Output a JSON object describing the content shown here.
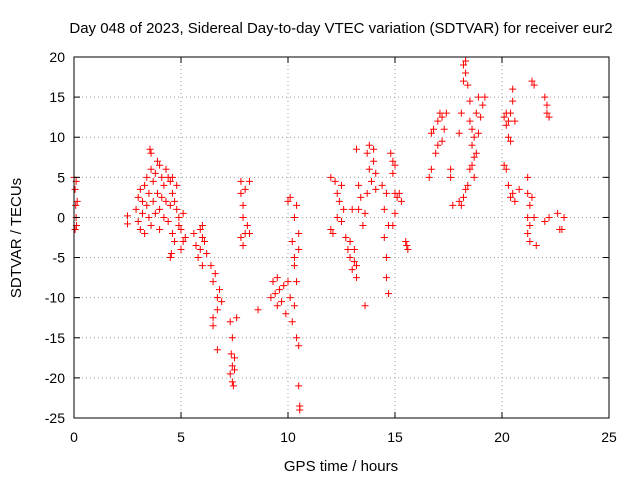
{
  "chart_data": {
    "type": "scatter",
    "title": "Day 048 of 2023, Sidereal Day-to-day VTEC variation (SDTVAR) for receiver eur2",
    "xlabel": "GPS time / hours",
    "ylabel": "SDTVAR / TECUs",
    "xlim": [
      0,
      25
    ],
    "ylim": [
      -25,
      20
    ],
    "xticks": [
      0,
      5,
      10,
      15,
      20,
      25
    ],
    "yticks": [
      -25,
      -20,
      -15,
      -10,
      -5,
      0,
      5,
      10,
      15,
      20
    ],
    "xtick_labels": [
      "0",
      "5",
      "10",
      "15",
      "20",
      "25"
    ],
    "ytick_labels": [
      "-25",
      "-20",
      "-15",
      "-10",
      "-5",
      "0",
      "5",
      "10",
      "15",
      "20"
    ],
    "grid": true,
    "marker": "plus",
    "color": "#ff0000",
    "series": [
      {
        "name": "SDTVAR",
        "points": [
          [
            0.0,
            5.0
          ],
          [
            0.05,
            3.5
          ],
          [
            0.08,
            1.5
          ],
          [
            0.1,
            0.0
          ],
          [
            0.12,
            -1.0
          ],
          [
            0.05,
            -1.5
          ],
          [
            0.1,
            4.5
          ],
          [
            0.15,
            2.0
          ],
          [
            2.5,
            0.2
          ],
          [
            2.5,
            -0.8
          ],
          [
            2.9,
            1.0
          ],
          [
            3.0,
            2.5
          ],
          [
            3.0,
            -0.5
          ],
          [
            3.1,
            3.5
          ],
          [
            3.1,
            -1.5
          ],
          [
            3.2,
            0.5
          ],
          [
            3.2,
            2.0
          ],
          [
            3.3,
            4.0
          ],
          [
            3.3,
            -2.0
          ],
          [
            3.4,
            1.5
          ],
          [
            3.4,
            5.0
          ],
          [
            3.5,
            3.0
          ],
          [
            3.5,
            0.0
          ],
          [
            3.55,
            8.5
          ],
          [
            3.6,
            8.0
          ],
          [
            3.6,
            6.0
          ],
          [
            3.6,
            -1.0
          ],
          [
            3.7,
            4.5
          ],
          [
            3.7,
            2.0
          ],
          [
            3.8,
            5.5
          ],
          [
            3.8,
            0.5
          ],
          [
            3.9,
            7.0
          ],
          [
            3.9,
            3.0
          ],
          [
            4.0,
            6.5
          ],
          [
            4.0,
            1.0
          ],
          [
            4.0,
            -1.5
          ],
          [
            4.1,
            5.0
          ],
          [
            4.1,
            2.5
          ],
          [
            4.2,
            4.0
          ],
          [
            4.2,
            0.0
          ],
          [
            4.3,
            6.0
          ],
          [
            4.3,
            2.0
          ],
          [
            4.4,
            5.0
          ],
          [
            4.4,
            -0.5
          ],
          [
            4.5,
            4.5
          ],
          [
            4.5,
            1.5
          ],
          [
            4.6,
            5.0
          ],
          [
            4.6,
            3.0
          ],
          [
            4.6,
            -2.0
          ],
          [
            4.7,
            2.0
          ],
          [
            4.7,
            -3.0
          ],
          [
            4.5,
            -5.0
          ],
          [
            4.55,
            -4.5
          ],
          [
            4.8,
            1.0
          ],
          [
            4.8,
            4.0
          ],
          [
            4.9,
            0.0
          ],
          [
            4.9,
            -1.0
          ],
          [
            5.0,
            -1.5
          ],
          [
            5.1,
            -3.0
          ],
          [
            5.1,
            0.5
          ],
          [
            5.0,
            -4.0
          ],
          [
            5.2,
            -2.5
          ],
          [
            5.6,
            -2.0
          ],
          [
            5.7,
            -3.5
          ],
          [
            5.8,
            -5.0
          ],
          [
            5.9,
            -4.0
          ],
          [
            6.0,
            -2.5
          ],
          [
            6.0,
            -6.0
          ],
          [
            6.1,
            -3.0
          ],
          [
            6.2,
            -4.5
          ],
          [
            5.9,
            -1.5
          ],
          [
            6.0,
            -1.0
          ],
          [
            6.4,
            -6.0
          ],
          [
            6.5,
            -8.0
          ],
          [
            6.6,
            -7.0
          ],
          [
            6.7,
            -10.0
          ],
          [
            6.7,
            -11.5
          ],
          [
            6.8,
            -9.0
          ],
          [
            6.9,
            -10.5
          ],
          [
            6.5,
            -12.5
          ],
          [
            6.5,
            -13.5
          ],
          [
            6.7,
            -16.5
          ],
          [
            7.3,
            -13.0
          ],
          [
            7.35,
            -17.0
          ],
          [
            7.4,
            -18.5
          ],
          [
            7.4,
            -20.5
          ],
          [
            7.45,
            -21.0
          ],
          [
            7.5,
            -19.0
          ],
          [
            7.5,
            -17.5
          ],
          [
            7.3,
            -19.5
          ],
          [
            7.6,
            -12.5
          ],
          [
            7.4,
            -15.0
          ],
          [
            7.8,
            4.5
          ],
          [
            7.8,
            3.0
          ],
          [
            7.9,
            1.5
          ],
          [
            7.9,
            0.0
          ],
          [
            8.0,
            3.5
          ],
          [
            7.8,
            -2.5
          ],
          [
            7.9,
            -3.5
          ],
          [
            8.0,
            -2.0
          ],
          [
            8.1,
            -1.0
          ],
          [
            8.2,
            -2.0
          ],
          [
            8.2,
            4.5
          ],
          [
            8.6,
            -11.5
          ],
          [
            9.2,
            -10.0
          ],
          [
            9.3,
            -8.0
          ],
          [
            9.4,
            -9.5
          ],
          [
            9.5,
            -7.5
          ],
          [
            9.5,
            -11.0
          ],
          [
            9.6,
            -9.0
          ],
          [
            9.7,
            -10.5
          ],
          [
            9.8,
            -8.5
          ],
          [
            9.9,
            -12.0
          ],
          [
            10.0,
            -8.0
          ],
          [
            10.0,
            2.0
          ],
          [
            10.1,
            2.5
          ],
          [
            10.1,
            -10.0
          ],
          [
            10.2,
            -13.0
          ],
          [
            10.3,
            -11.0
          ],
          [
            10.3,
            -6.0
          ],
          [
            10.4,
            -8.0
          ],
          [
            10.4,
            -15.0
          ],
          [
            10.5,
            -16.0
          ],
          [
            10.3,
            0.0
          ],
          [
            10.4,
            1.5
          ],
          [
            10.5,
            -2.0
          ],
          [
            10.5,
            -4.0
          ],
          [
            10.2,
            -3.0
          ],
          [
            10.3,
            -5.0
          ],
          [
            10.5,
            -21.0
          ],
          [
            10.55,
            -23.5
          ],
          [
            10.55,
            -24.0
          ],
          [
            12.0,
            5.0
          ],
          [
            12.0,
            -1.5
          ],
          [
            12.1,
            -2.0
          ],
          [
            12.2,
            4.5
          ],
          [
            12.3,
            3.0
          ],
          [
            12.3,
            0.0
          ],
          [
            12.4,
            2.0
          ],
          [
            12.5,
            4.0
          ],
          [
            12.5,
            -0.5
          ],
          [
            12.6,
            1.0
          ],
          [
            12.7,
            -2.5
          ],
          [
            12.8,
            -4.0
          ],
          [
            12.9,
            -5.0
          ],
          [
            13.0,
            -6.5
          ],
          [
            13.1,
            -5.5
          ],
          [
            13.2,
            -6.0
          ],
          [
            13.1,
            -4.0
          ],
          [
            13.2,
            -7.5
          ],
          [
            12.9,
            -3.0
          ],
          [
            13.0,
            1.0
          ],
          [
            13.2,
            8.5
          ],
          [
            13.3,
            4.0
          ],
          [
            13.3,
            1.0
          ],
          [
            13.4,
            2.5
          ],
          [
            13.5,
            -1.0
          ],
          [
            13.6,
            -11.0
          ],
          [
            13.6,
            0.5
          ],
          [
            13.7,
            3.0
          ],
          [
            13.7,
            8.0
          ],
          [
            13.8,
            9.0
          ],
          [
            13.8,
            6.0
          ],
          [
            13.9,
            4.5
          ],
          [
            14.0,
            7.0
          ],
          [
            14.0,
            8.5
          ],
          [
            14.1,
            3.5
          ],
          [
            14.1,
            5.5
          ],
          [
            14.4,
            4.0
          ],
          [
            14.5,
            1.0
          ],
          [
            14.5,
            -2.5
          ],
          [
            14.6,
            -5.0
          ],
          [
            14.6,
            -7.5
          ],
          [
            14.7,
            -9.5
          ],
          [
            14.6,
            3.0
          ],
          [
            14.7,
            -1.0
          ],
          [
            14.8,
            8.0
          ],
          [
            14.9,
            7.0
          ],
          [
            14.9,
            5.5
          ],
          [
            15.0,
            6.5
          ],
          [
            15.0,
            3.0
          ],
          [
            15.0,
            0.5
          ],
          [
            15.1,
            2.5
          ],
          [
            15.2,
            3.0
          ],
          [
            15.3,
            2.0
          ],
          [
            14.9,
            -1.0
          ],
          [
            15.5,
            -3.0
          ],
          [
            15.55,
            -3.5
          ],
          [
            15.6,
            -4.0
          ],
          [
            16.6,
            5.0
          ],
          [
            16.7,
            6.0
          ],
          [
            16.7,
            10.5
          ],
          [
            16.8,
            11.0
          ],
          [
            16.9,
            8.0
          ],
          [
            17.0,
            9.0
          ],
          [
            17.0,
            12.0
          ],
          [
            17.1,
            13.0
          ],
          [
            17.2,
            12.5
          ],
          [
            17.3,
            11.0
          ],
          [
            17.4,
            13.0
          ],
          [
            17.2,
            9.5
          ],
          [
            17.6,
            6.0
          ],
          [
            17.6,
            5.0
          ],
          [
            17.7,
            1.5
          ],
          [
            18.0,
            10.5
          ],
          [
            18.1,
            13.0
          ],
          [
            18.2,
            17.0
          ],
          [
            18.2,
            19.0
          ],
          [
            18.3,
            19.5
          ],
          [
            18.3,
            18.0
          ],
          [
            18.4,
            16.5
          ],
          [
            18.5,
            14.5
          ],
          [
            18.5,
            12.0
          ],
          [
            18.6,
            11.0
          ],
          [
            18.6,
            9.0
          ],
          [
            18.7,
            7.5
          ],
          [
            18.7,
            5.0
          ],
          [
            18.8,
            8.0
          ],
          [
            18.8,
            13.0
          ],
          [
            18.9,
            10.5
          ],
          [
            18.9,
            15.0
          ],
          [
            19.0,
            12.5
          ],
          [
            19.1,
            14.0
          ],
          [
            19.2,
            15.0
          ],
          [
            18.1,
            1.5
          ],
          [
            18.2,
            2.5
          ],
          [
            18.3,
            3.5
          ],
          [
            18.4,
            4.0
          ],
          [
            18.5,
            6.0
          ],
          [
            18.0,
            2.0
          ],
          [
            18.6,
            6.5
          ],
          [
            18.7,
            10.0
          ],
          [
            20.1,
            12.5
          ],
          [
            20.2,
            11.5
          ],
          [
            20.2,
            13.0
          ],
          [
            20.3,
            12.0
          ],
          [
            20.3,
            10.0
          ],
          [
            20.4,
            13.0
          ],
          [
            20.5,
            16.0
          ],
          [
            20.5,
            14.5
          ],
          [
            20.6,
            12.0
          ],
          [
            20.4,
            9.5
          ],
          [
            20.1,
            6.5
          ],
          [
            20.2,
            6.0
          ],
          [
            20.3,
            4.0
          ],
          [
            20.4,
            2.5
          ],
          [
            20.5,
            3.0
          ],
          [
            20.6,
            2.0
          ],
          [
            20.8,
            3.5
          ],
          [
            21.2,
            5.0
          ],
          [
            21.2,
            3.0
          ],
          [
            21.3,
            1.5
          ],
          [
            21.2,
            0.0
          ],
          [
            21.3,
            -1.0
          ],
          [
            21.2,
            -2.0
          ],
          [
            21.3,
            -3.0
          ],
          [
            21.4,
            2.5
          ],
          [
            21.5,
            0.0
          ],
          [
            21.6,
            -3.5
          ],
          [
            21.4,
            17.0
          ],
          [
            21.5,
            16.5
          ],
          [
            22.0,
            15.0
          ],
          [
            22.1,
            14.0
          ],
          [
            22.1,
            13.0
          ],
          [
            22.2,
            12.5
          ],
          [
            22.0,
            -0.5
          ],
          [
            22.2,
            0.0
          ],
          [
            22.6,
            0.5
          ],
          [
            22.7,
            -1.5
          ],
          [
            22.8,
            -1.5
          ],
          [
            22.9,
            0.0
          ]
        ]
      }
    ]
  }
}
